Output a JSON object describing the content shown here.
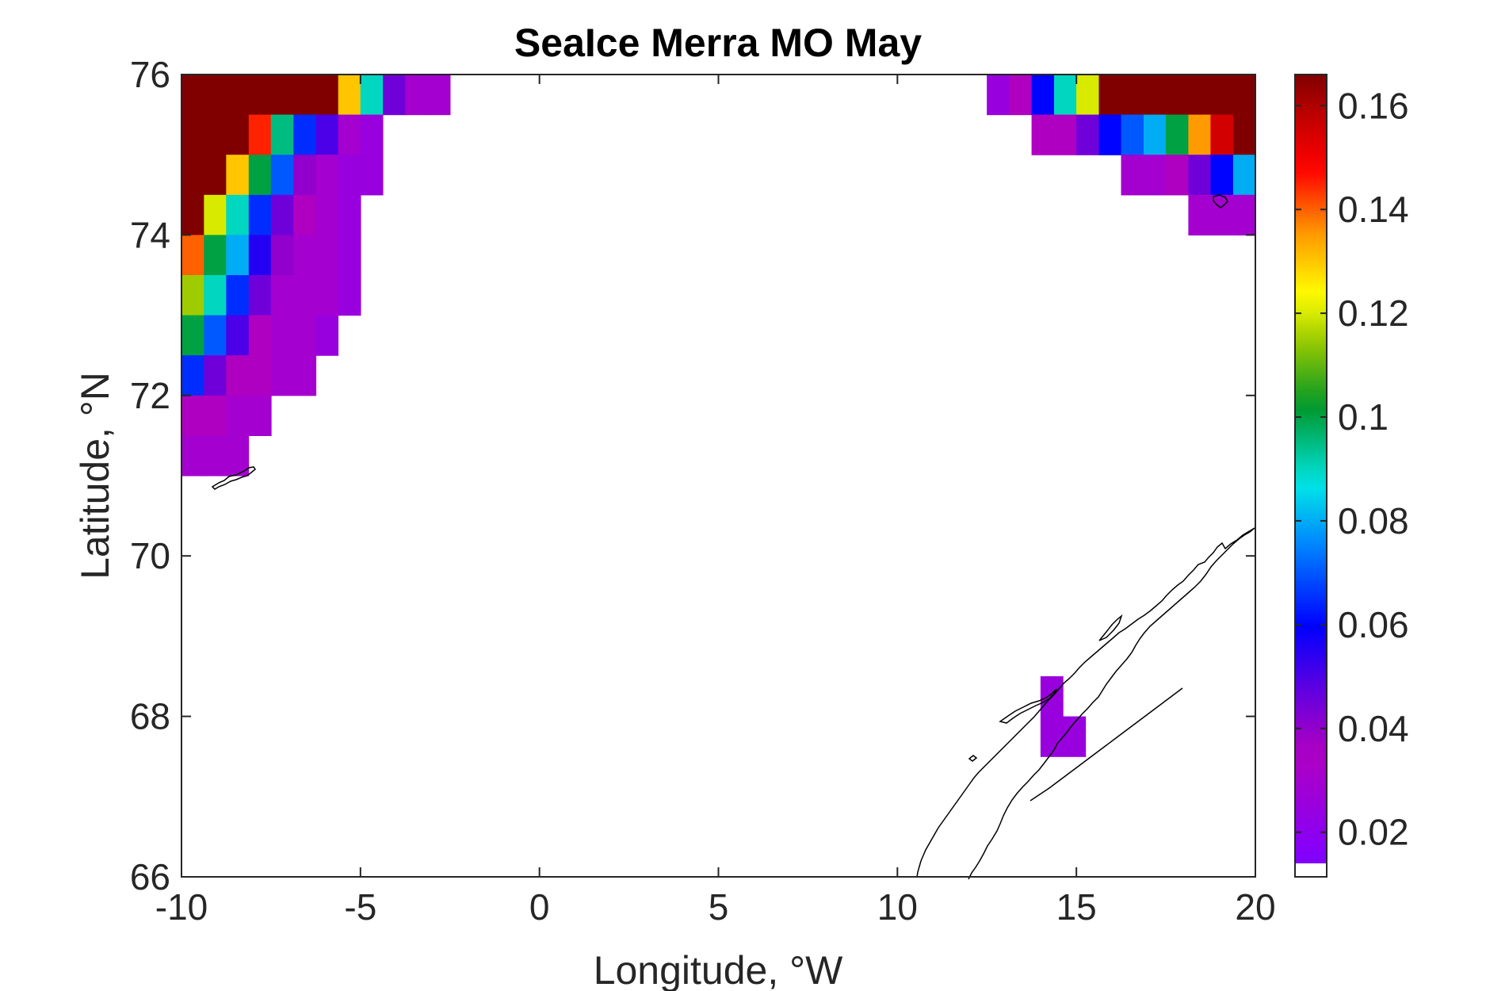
{
  "chart_data": {
    "type": "heatmap",
    "title": "SeaIce Merra MO May",
    "xlabel": "Longitude, °W",
    "ylabel": "Latitude, °N",
    "xlim": [
      -10,
      20
    ],
    "ylim": [
      66,
      76
    ],
    "x_ticks": [
      -10,
      -5,
      0,
      5,
      10,
      15,
      20
    ],
    "y_ticks": [
      66,
      68,
      70,
      72,
      74,
      76
    ],
    "x_tick_labels": [
      "-10",
      "-5",
      "0",
      "5",
      "10",
      "15",
      "20"
    ],
    "y_tick_labels": [
      "66",
      "68",
      "70",
      "72",
      "74",
      "76"
    ],
    "colorbar": {
      "colormap": "jet-like (purple-blue-cyan-green-yellow-red-darkred)",
      "min": 0.014,
      "max": 0.166,
      "ticks": [
        0.02,
        0.04,
        0.06,
        0.08,
        0.1,
        0.12,
        0.14,
        0.16
      ],
      "tick_labels": [
        "0.02",
        "0.04",
        "0.06",
        "0.08",
        "0.1",
        "0.12",
        "0.14",
        "0.16"
      ]
    },
    "grid": false,
    "cell_width_lon": 0.625,
    "cell_height_lat": 0.5,
    "cells": [
      {
        "lon": -9.69,
        "lat": 75.75,
        "v": 0.17
      },
      {
        "lon": -9.06,
        "lat": 75.75,
        "v": 0.17
      },
      {
        "lon": -8.44,
        "lat": 75.75,
        "v": 0.17
      },
      {
        "lon": -7.81,
        "lat": 75.75,
        "v": 0.17
      },
      {
        "lon": -7.19,
        "lat": 75.75,
        "v": 0.17
      },
      {
        "lon": -6.56,
        "lat": 75.75,
        "v": 0.17
      },
      {
        "lon": -5.94,
        "lat": 75.75,
        "v": 0.17
      },
      {
        "lon": -5.31,
        "lat": 75.75,
        "v": 0.13
      },
      {
        "lon": -4.69,
        "lat": 75.75,
        "v": 0.09
      },
      {
        "lon": -4.06,
        "lat": 75.75,
        "v": 0.045
      },
      {
        "lon": -3.44,
        "lat": 75.75,
        "v": 0.03
      },
      {
        "lon": -2.81,
        "lat": 75.75,
        "v": 0.03
      },
      {
        "lon": -9.69,
        "lat": 75.25,
        "v": 0.17
      },
      {
        "lon": -9.06,
        "lat": 75.25,
        "v": 0.17
      },
      {
        "lon": -8.44,
        "lat": 75.25,
        "v": 0.17
      },
      {
        "lon": -7.81,
        "lat": 75.25,
        "v": 0.145
      },
      {
        "lon": -7.19,
        "lat": 75.25,
        "v": 0.095
      },
      {
        "lon": -6.56,
        "lat": 75.25,
        "v": 0.065
      },
      {
        "lon": -5.94,
        "lat": 75.25,
        "v": 0.05
      },
      {
        "lon": -5.31,
        "lat": 75.25,
        "v": 0.03
      },
      {
        "lon": -4.69,
        "lat": 75.25,
        "v": 0.025
      },
      {
        "lon": -9.69,
        "lat": 74.75,
        "v": 0.17
      },
      {
        "lon": -9.06,
        "lat": 74.75,
        "v": 0.17
      },
      {
        "lon": -8.44,
        "lat": 74.75,
        "v": 0.13
      },
      {
        "lon": -7.81,
        "lat": 74.75,
        "v": 0.1
      },
      {
        "lon": -7.19,
        "lat": 74.75,
        "v": 0.07
      },
      {
        "lon": -6.56,
        "lat": 74.75,
        "v": 0.04
      },
      {
        "lon": -5.94,
        "lat": 74.75,
        "v": 0.03
      },
      {
        "lon": -5.31,
        "lat": 74.75,
        "v": 0.025
      },
      {
        "lon": -4.69,
        "lat": 74.75,
        "v": 0.025
      },
      {
        "lon": -9.69,
        "lat": 74.25,
        "v": 0.17
      },
      {
        "lon": -9.06,
        "lat": 74.25,
        "v": 0.12
      },
      {
        "lon": -8.44,
        "lat": 74.25,
        "v": 0.09
      },
      {
        "lon": -7.81,
        "lat": 74.25,
        "v": 0.065
      },
      {
        "lon": -7.19,
        "lat": 74.25,
        "v": 0.045
      },
      {
        "lon": -6.56,
        "lat": 74.25,
        "v": 0.035
      },
      {
        "lon": -5.94,
        "lat": 74.25,
        "v": 0.03
      },
      {
        "lon": -5.31,
        "lat": 74.25,
        "v": 0.025
      },
      {
        "lon": -9.69,
        "lat": 73.75,
        "v": 0.14
      },
      {
        "lon": -9.06,
        "lat": 73.75,
        "v": 0.1
      },
      {
        "lon": -8.44,
        "lat": 73.75,
        "v": 0.08
      },
      {
        "lon": -7.81,
        "lat": 73.75,
        "v": 0.055
      },
      {
        "lon": -7.19,
        "lat": 73.75,
        "v": 0.04
      },
      {
        "lon": -6.56,
        "lat": 73.75,
        "v": 0.03
      },
      {
        "lon": -5.94,
        "lat": 73.75,
        "v": 0.03
      },
      {
        "lon": -5.31,
        "lat": 73.75,
        "v": 0.025
      },
      {
        "lon": -9.69,
        "lat": 73.25,
        "v": 0.115
      },
      {
        "lon": -9.06,
        "lat": 73.25,
        "v": 0.09
      },
      {
        "lon": -8.44,
        "lat": 73.25,
        "v": 0.065
      },
      {
        "lon": -7.81,
        "lat": 73.25,
        "v": 0.045
      },
      {
        "lon": -7.19,
        "lat": 73.25,
        "v": 0.03
      },
      {
        "lon": -6.56,
        "lat": 73.25,
        "v": 0.03
      },
      {
        "lon": -5.94,
        "lat": 73.25,
        "v": 0.03
      },
      {
        "lon": -5.31,
        "lat": 73.25,
        "v": 0.025
      },
      {
        "lon": -9.69,
        "lat": 72.75,
        "v": 0.1
      },
      {
        "lon": -9.06,
        "lat": 72.75,
        "v": 0.07
      },
      {
        "lon": -8.44,
        "lat": 72.75,
        "v": 0.05
      },
      {
        "lon": -7.81,
        "lat": 72.75,
        "v": 0.035
      },
      {
        "lon": -7.19,
        "lat": 72.75,
        "v": 0.03
      },
      {
        "lon": -6.56,
        "lat": 72.75,
        "v": 0.03
      },
      {
        "lon": -5.94,
        "lat": 72.75,
        "v": 0.025
      },
      {
        "lon": -9.69,
        "lat": 72.25,
        "v": 0.065
      },
      {
        "lon": -9.06,
        "lat": 72.25,
        "v": 0.045
      },
      {
        "lon": -8.44,
        "lat": 72.25,
        "v": 0.035
      },
      {
        "lon": -7.81,
        "lat": 72.25,
        "v": 0.035
      },
      {
        "lon": -7.19,
        "lat": 72.25,
        "v": 0.03
      },
      {
        "lon": -6.56,
        "lat": 72.25,
        "v": 0.03
      },
      {
        "lon": -9.69,
        "lat": 71.75,
        "v": 0.035
      },
      {
        "lon": -9.06,
        "lat": 71.75,
        "v": 0.035
      },
      {
        "lon": -8.44,
        "lat": 71.75,
        "v": 0.03
      },
      {
        "lon": -7.81,
        "lat": 71.75,
        "v": 0.03
      },
      {
        "lon": -9.69,
        "lat": 71.25,
        "v": 0.03
      },
      {
        "lon": -9.06,
        "lat": 71.25,
        "v": 0.03
      },
      {
        "lon": -8.44,
        "lat": 71.25,
        "v": 0.03
      },
      {
        "lon": 12.81,
        "lat": 75.75,
        "v": 0.025
      },
      {
        "lon": 13.44,
        "lat": 75.75,
        "v": 0.035
      },
      {
        "lon": 14.06,
        "lat": 75.75,
        "v": 0.06
      },
      {
        "lon": 14.69,
        "lat": 75.75,
        "v": 0.09
      },
      {
        "lon": 15.31,
        "lat": 75.75,
        "v": 0.12
      },
      {
        "lon": 15.94,
        "lat": 75.75,
        "v": 0.17
      },
      {
        "lon": 16.56,
        "lat": 75.75,
        "v": 0.17
      },
      {
        "lon": 17.19,
        "lat": 75.75,
        "v": 0.17
      },
      {
        "lon": 17.81,
        "lat": 75.75,
        "v": 0.17
      },
      {
        "lon": 18.44,
        "lat": 75.75,
        "v": 0.17
      },
      {
        "lon": 19.06,
        "lat": 75.75,
        "v": 0.17
      },
      {
        "lon": 19.69,
        "lat": 75.75,
        "v": 0.17
      },
      {
        "lon": 14.06,
        "lat": 75.25,
        "v": 0.035
      },
      {
        "lon": 14.69,
        "lat": 75.25,
        "v": 0.035
      },
      {
        "lon": 15.31,
        "lat": 75.25,
        "v": 0.045
      },
      {
        "lon": 15.94,
        "lat": 75.25,
        "v": 0.06
      },
      {
        "lon": 16.56,
        "lat": 75.25,
        "v": 0.07
      },
      {
        "lon": 17.19,
        "lat": 75.25,
        "v": 0.08
      },
      {
        "lon": 17.81,
        "lat": 75.25,
        "v": 0.1
      },
      {
        "lon": 18.44,
        "lat": 75.25,
        "v": 0.135
      },
      {
        "lon": 19.06,
        "lat": 75.25,
        "v": 0.155
      },
      {
        "lon": 19.69,
        "lat": 75.25,
        "v": 0.17
      },
      {
        "lon": 16.56,
        "lat": 74.75,
        "v": 0.03
      },
      {
        "lon": 17.19,
        "lat": 74.75,
        "v": 0.03
      },
      {
        "lon": 17.81,
        "lat": 74.75,
        "v": 0.035
      },
      {
        "lon": 18.44,
        "lat": 74.75,
        "v": 0.045
      },
      {
        "lon": 19.06,
        "lat": 74.75,
        "v": 0.06
      },
      {
        "lon": 19.69,
        "lat": 74.75,
        "v": 0.08
      },
      {
        "lon": 18.44,
        "lat": 74.25,
        "v": 0.03
      },
      {
        "lon": 19.06,
        "lat": 74.25,
        "v": 0.03
      },
      {
        "lon": 19.69,
        "lat": 74.25,
        "v": 0.03
      },
      {
        "lon": 14.31,
        "lat": 68.25,
        "v": 0.025
      },
      {
        "lon": 14.31,
        "lat": 67.75,
        "v": 0.025
      },
      {
        "lon": 14.94,
        "lat": 67.75,
        "v": 0.025
      }
    ]
  },
  "colors": {
    "axes_frame": "#262626",
    "background": "#ffffff",
    "coastline": "#000000"
  }
}
